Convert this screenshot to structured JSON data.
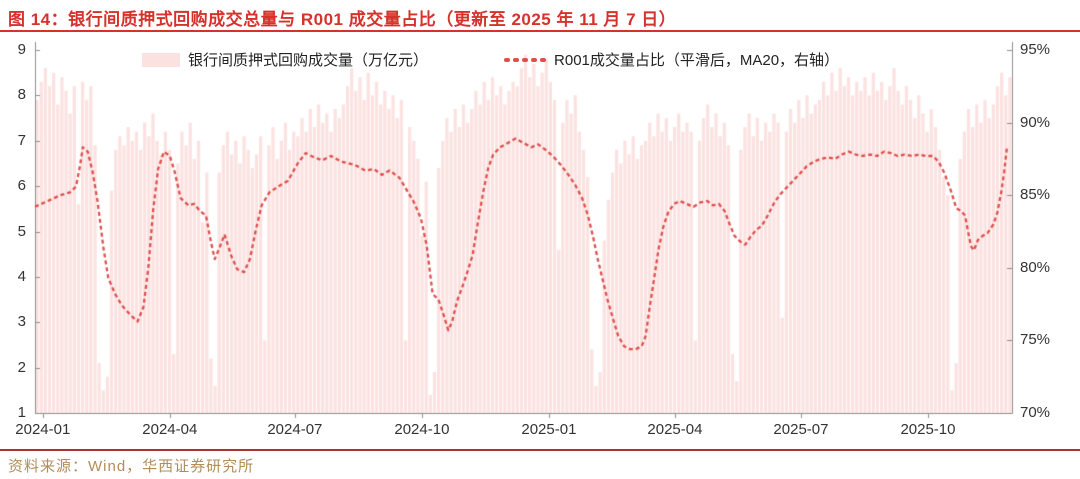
{
  "page": {
    "title": "图 14：银行间质押式回购成交总量与 R001 成交量占比（更新至 2025 年 11 月 7 日）",
    "source_note": "资料来源：Wind，华西证券研究所"
  },
  "colors": {
    "title_red": "#d7312b",
    "rule_red": "#d7312b",
    "divider_red": "#a6352b",
    "source_text": "#b18d5a",
    "bar_fill": "#fbe2e1",
    "line_red": "#dd4f4c",
    "axis_gray": "#8f8f8f",
    "tick_text": "#333333"
  },
  "legend": [
    {
      "type": "bar",
      "label": "银行间质押式回购成交量（万亿元）"
    },
    {
      "type": "line",
      "label": "R001成交量占比（平滑后，MA20，右轴）"
    }
  ],
  "chart_data": {
    "type": "bar+line",
    "title": "银行间质押式回购成交总量与 R001 成交量占比",
    "legend_position": "top",
    "grid": false,
    "left_axis": {
      "label": "万亿元",
      "min": 1,
      "max": 9,
      "ticks": [
        1,
        2,
        3,
        4,
        5,
        6,
        7,
        8,
        9
      ]
    },
    "right_axis": {
      "label": "%",
      "min": 70,
      "max": 95,
      "ticks": [
        70,
        75,
        80,
        85,
        90,
        95
      ],
      "tick_labels": [
        "70%",
        "75%",
        "80%",
        "85%",
        "90%",
        "95%"
      ]
    },
    "x_ticks": {
      "labels": [
        "2024-01",
        "2024-04",
        "2024-07",
        "2024-10",
        "2025-01",
        "2025-04",
        "2025-07",
        "2025-10"
      ],
      "t": [
        0.008,
        0.138,
        0.266,
        0.396,
        0.526,
        0.655,
        0.784,
        0.914
      ]
    },
    "bars": {
      "name": "银行间质押式回购成交量（万亿元）",
      "unit": "万亿元",
      "note": "daily values, est.",
      "values": [
        7.9,
        8.3,
        8.6,
        8.2,
        8.5,
        7.8,
        8.4,
        8.1,
        7.6,
        8.2,
        5.6,
        8.3,
        7.9,
        8.2,
        6.9,
        2.1,
        1.5,
        1.8,
        5.9,
        6.8,
        7.1,
        6.9,
        7.3,
        7.0,
        7.2,
        6.8,
        7.4,
        7.1,
        7.6,
        7.0,
        6.7,
        7.2,
        6.8,
        2.3,
        6.5,
        7.2,
        6.9,
        7.4,
        6.6,
        7.0,
        5.2,
        6.3,
        2.2,
        1.6,
        6.3,
        6.9,
        7.2,
        6.7,
        7.0,
        6.5,
        7.1,
        6.8,
        6.4,
        6.7,
        7.1,
        2.6,
        6.9,
        7.3,
        6.6,
        7.0,
        7.4,
        6.8,
        7.2,
        7.1,
        7.5,
        7.2,
        7.7,
        7.3,
        7.8,
        7.4,
        7.6,
        7.2,
        7.7,
        7.5,
        7.8,
        8.2,
        8.6,
        8.1,
        8.4,
        7.9,
        8.5,
        8.0,
        8.3,
        7.8,
        8.1,
        7.7,
        8.0,
        7.5,
        7.9,
        2.6,
        7.3,
        7.0,
        6.6,
        4.9,
        6.1,
        1.4,
        1.9,
        6.4,
        7.0,
        7.5,
        7.2,
        7.7,
        7.3,
        7.8,
        7.4,
        7.7,
        8.1,
        7.8,
        8.3,
        7.9,
        8.4,
        8.0,
        8.2,
        7.8,
        8.1,
        8.3,
        8.2,
        8.6,
        8.9,
        8.4,
        8.7,
        8.2,
        8.5,
        8.8,
        8.3,
        7.9,
        4.6,
        7.4,
        7.9,
        7.6,
        8.0,
        7.2,
        6.8,
        6.2,
        2.4,
        1.6,
        1.9,
        4.8,
        5.7,
        6.3,
        6.8,
        6.5,
        7.0,
        6.7,
        7.1,
        6.6,
        6.9,
        7.0,
        7.4,
        7.1,
        7.6,
        7.2,
        7.5,
        7.0,
        7.3,
        7.6,
        7.2,
        7.4,
        7.2,
        2.6,
        7.0,
        7.5,
        7.8,
        7.3,
        7.6,
        7.1,
        7.4,
        6.9,
        2.3,
        1.7,
        6.8,
        7.3,
        7.6,
        7.1,
        7.5,
        7.0,
        7.4,
        7.2,
        7.6,
        7.4,
        3.1,
        7.2,
        7.7,
        7.4,
        7.9,
        7.5,
        8.0,
        7.6,
        7.8,
        7.9,
        8.3,
        8.0,
        8.5,
        8.1,
        8.6,
        8.2,
        8.4,
        8.0,
        8.3,
        8.1,
        8.4,
        8.0,
        8.5,
        8.1,
        8.3,
        7.9,
        8.2,
        8.6,
        8.1,
        7.8,
        8.2,
        7.9,
        7.5,
        8.0,
        7.6,
        7.2,
        7.7,
        7.3,
        6.8,
        6.2,
        5.8,
        1.5,
        2.1,
        6.6,
        7.2,
        7.7,
        7.3,
        7.8,
        7.4,
        7.9,
        7.5,
        7.8,
        8.2,
        8.5,
        8.0,
        8.4
      ]
    },
    "line": {
      "name": "R001成交量占比（平滑后，MA20，右轴）",
      "unit": "%",
      "points": [
        [
          0.0,
          84.2
        ],
        [
          0.013,
          84.6
        ],
        [
          0.026,
          85.0
        ],
        [
          0.036,
          85.2
        ],
        [
          0.042,
          85.6
        ],
        [
          0.046,
          87.0
        ],
        [
          0.049,
          88.3
        ],
        [
          0.054,
          88.0
        ],
        [
          0.059,
          86.6
        ],
        [
          0.064,
          84.6
        ],
        [
          0.07,
          81.4
        ],
        [
          0.075,
          79.3
        ],
        [
          0.082,
          78.2
        ],
        [
          0.089,
          77.4
        ],
        [
          0.097,
          76.8
        ],
        [
          0.105,
          76.3
        ],
        [
          0.111,
          77.3
        ],
        [
          0.116,
          80.0
        ],
        [
          0.121,
          84.0
        ],
        [
          0.126,
          86.8
        ],
        [
          0.132,
          88.0
        ],
        [
          0.138,
          87.7
        ],
        [
          0.143,
          86.6
        ],
        [
          0.149,
          84.8
        ],
        [
          0.157,
          84.3
        ],
        [
          0.163,
          84.4
        ],
        [
          0.169,
          83.9
        ],
        [
          0.175,
          83.6
        ],
        [
          0.18,
          81.8
        ],
        [
          0.184,
          80.6
        ],
        [
          0.189,
          81.4
        ],
        [
          0.194,
          82.3
        ],
        [
          0.201,
          80.8
        ],
        [
          0.207,
          79.9
        ],
        [
          0.214,
          79.7
        ],
        [
          0.22,
          80.6
        ],
        [
          0.226,
          82.6
        ],
        [
          0.232,
          84.3
        ],
        [
          0.24,
          85.2
        ],
        [
          0.249,
          85.6
        ],
        [
          0.259,
          86.0
        ],
        [
          0.269,
          87.2
        ],
        [
          0.277,
          87.9
        ],
        [
          0.286,
          87.6
        ],
        [
          0.294,
          87.4
        ],
        [
          0.303,
          87.7
        ],
        [
          0.314,
          87.3
        ],
        [
          0.327,
          87.1
        ],
        [
          0.338,
          86.7
        ],
        [
          0.347,
          86.8
        ],
        [
          0.355,
          86.4
        ],
        [
          0.363,
          86.7
        ],
        [
          0.373,
          86.2
        ],
        [
          0.381,
          85.3
        ],
        [
          0.388,
          84.5
        ],
        [
          0.395,
          83.4
        ],
        [
          0.401,
          81.5
        ],
        [
          0.407,
          78.2
        ],
        [
          0.413,
          77.8
        ],
        [
          0.418,
          76.8
        ],
        [
          0.423,
          75.7
        ],
        [
          0.427,
          76.3
        ],
        [
          0.432,
          77.7
        ],
        [
          0.438,
          78.8
        ],
        [
          0.443,
          79.8
        ],
        [
          0.448,
          80.9
        ],
        [
          0.453,
          83.0
        ],
        [
          0.459,
          85.3
        ],
        [
          0.464,
          86.9
        ],
        [
          0.469,
          87.8
        ],
        [
          0.476,
          88.3
        ],
        [
          0.484,
          88.6
        ],
        [
          0.492,
          88.9
        ],
        [
          0.5,
          88.6
        ],
        [
          0.508,
          88.3
        ],
        [
          0.515,
          88.5
        ],
        [
          0.523,
          88.1
        ],
        [
          0.53,
          87.7
        ],
        [
          0.538,
          87.1
        ],
        [
          0.546,
          86.4
        ],
        [
          0.553,
          85.7
        ],
        [
          0.56,
          84.8
        ],
        [
          0.566,
          83.6
        ],
        [
          0.571,
          82.2
        ],
        [
          0.576,
          80.6
        ],
        [
          0.581,
          79.2
        ],
        [
          0.586,
          77.8
        ],
        [
          0.592,
          76.4
        ],
        [
          0.597,
          75.3
        ],
        [
          0.603,
          74.6
        ],
        [
          0.609,
          74.4
        ],
        [
          0.615,
          74.4
        ],
        [
          0.621,
          74.6
        ],
        [
          0.625,
          75.3
        ],
        [
          0.629,
          77.2
        ],
        [
          0.634,
          79.4
        ],
        [
          0.638,
          81.2
        ],
        [
          0.643,
          82.8
        ],
        [
          0.648,
          83.8
        ],
        [
          0.654,
          84.4
        ],
        [
          0.66,
          84.6
        ],
        [
          0.667,
          84.4
        ],
        [
          0.674,
          84.2
        ],
        [
          0.681,
          84.5
        ],
        [
          0.688,
          84.6
        ],
        [
          0.694,
          84.3
        ],
        [
          0.7,
          84.4
        ],
        [
          0.706,
          83.9
        ],
        [
          0.711,
          83.0
        ],
        [
          0.716,
          82.2
        ],
        [
          0.722,
          81.8
        ],
        [
          0.727,
          81.6
        ],
        [
          0.732,
          82.1
        ],
        [
          0.738,
          82.6
        ],
        [
          0.744,
          82.9
        ],
        [
          0.75,
          83.6
        ],
        [
          0.756,
          84.4
        ],
        [
          0.762,
          85.0
        ],
        [
          0.769,
          85.5
        ],
        [
          0.776,
          86.0
        ],
        [
          0.783,
          86.5
        ],
        [
          0.79,
          87.0
        ],
        [
          0.797,
          87.3
        ],
        [
          0.804,
          87.5
        ],
        [
          0.812,
          87.6
        ],
        [
          0.819,
          87.5
        ],
        [
          0.826,
          87.8
        ],
        [
          0.833,
          88.0
        ],
        [
          0.84,
          87.8
        ],
        [
          0.847,
          87.7
        ],
        [
          0.855,
          87.8
        ],
        [
          0.862,
          87.7
        ],
        [
          0.869,
          88.0
        ],
        [
          0.876,
          87.9
        ],
        [
          0.883,
          87.7
        ],
        [
          0.89,
          87.8
        ],
        [
          0.898,
          87.7
        ],
        [
          0.905,
          87.8
        ],
        [
          0.912,
          87.7
        ],
        [
          0.919,
          87.7
        ],
        [
          0.925,
          87.3
        ],
        [
          0.931,
          86.5
        ],
        [
          0.938,
          85.2
        ],
        [
          0.943,
          84.1
        ],
        [
          0.948,
          83.9
        ],
        [
          0.952,
          83.6
        ],
        [
          0.955,
          82.5
        ],
        [
          0.958,
          81.5
        ],
        [
          0.961,
          81.2
        ],
        [
          0.965,
          81.9
        ],
        [
          0.97,
          82.2
        ],
        [
          0.975,
          82.4
        ],
        [
          0.981,
          83.0
        ],
        [
          0.985,
          83.8
        ],
        [
          0.989,
          85.2
        ],
        [
          0.992,
          86.6
        ],
        [
          0.995,
          88.4
        ]
      ]
    }
  }
}
